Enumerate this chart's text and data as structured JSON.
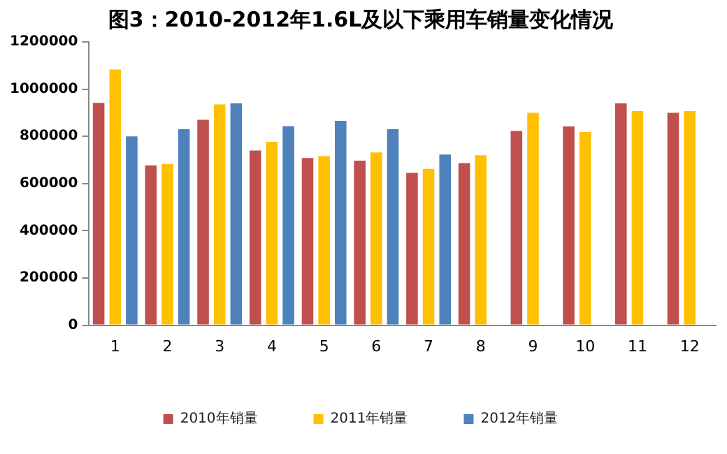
{
  "chart_data": {
    "type": "bar",
    "title": "图3：2010-2012年1.6L及以下乘用车销量变化情况",
    "categories": [
      "1",
      "2",
      "3",
      "4",
      "5",
      "6",
      "7",
      "8",
      "9",
      "10",
      "11",
      "12"
    ],
    "series": [
      {
        "name": "2010年销量",
        "color": "#c0504d",
        "values": [
          942000,
          677000,
          870000,
          740000,
          708000,
          697000,
          645000,
          687000,
          823000,
          842000,
          940000,
          900000
        ]
      },
      {
        "name": "2011年销量",
        "color": "#ffc000",
        "values": [
          1083000,
          683000,
          935000,
          777000,
          716000,
          732000,
          662000,
          720000,
          900000,
          818000,
          907000,
          907000
        ]
      },
      {
        "name": "2012年销量",
        "color": "#4f81bd",
        "values": [
          800000,
          830000,
          940000,
          843000,
          866000,
          830000,
          723000,
          null,
          null,
          null,
          null,
          null
        ]
      }
    ],
    "ylim": [
      0,
      1200000
    ],
    "yticks": [
      0,
      200000,
      400000,
      600000,
      800000,
      1000000,
      1200000
    ],
    "grid": false,
    "legend": "bottom"
  }
}
